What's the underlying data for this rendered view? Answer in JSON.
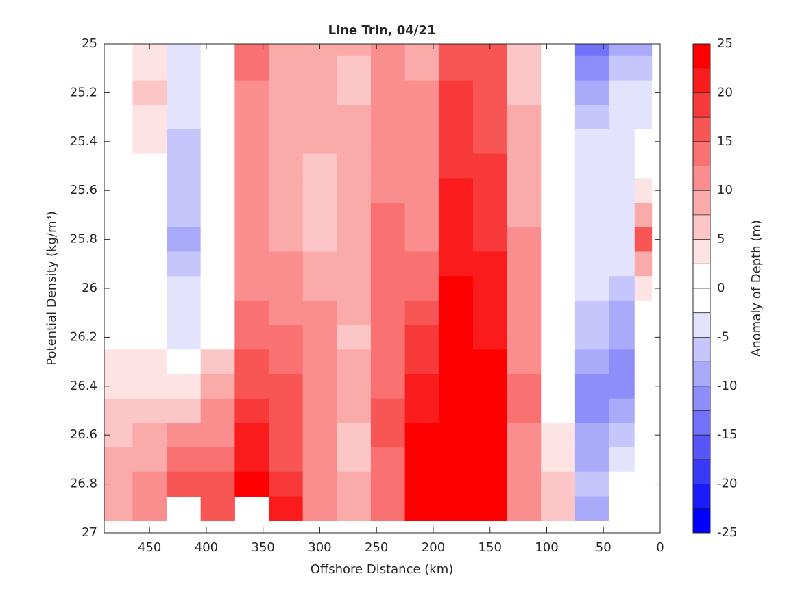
{
  "chart_data": {
    "type": "contourf",
    "title": "Line Trin, 04/21",
    "xlabel": "Offshore Distance (km)",
    "ylabel": "Potential Density (kg/m³)",
    "x": [
      480,
      450,
      420,
      390,
      360,
      330,
      300,
      270,
      240,
      210,
      180,
      150,
      120,
      90,
      60,
      30,
      15
    ],
    "y": [
      25.0,
      25.1,
      25.2,
      25.3,
      25.4,
      25.5,
      25.6,
      25.7,
      25.8,
      25.9,
      26.0,
      26.1,
      26.2,
      26.3,
      26.4,
      26.5,
      26.6,
      26.7,
      26.8,
      26.9
    ],
    "z": [
      [
        1,
        3,
        -4,
        1,
        14,
        9,
        8,
        8,
        11,
        9,
        16,
        15,
        7,
        1,
        -14,
        -8,
        -9
      ],
      [
        2,
        4,
        -4,
        1,
        14,
        9,
        8,
        7,
        11,
        9,
        17,
        15,
        7,
        1,
        -12,
        -7,
        -7
      ],
      [
        2,
        6,
        -5,
        1,
        12,
        9,
        8,
        7,
        12,
        10,
        18,
        16,
        7,
        1,
        -9,
        -4,
        -5
      ],
      [
        2,
        4,
        -5,
        1,
        11,
        9,
        8,
        8,
        12,
        10,
        18,
        17,
        8,
        1,
        -7,
        -4,
        -3
      ],
      [
        1,
        3,
        -6,
        1,
        11,
        9,
        8,
        8,
        12,
        10,
        19,
        17,
        8,
        1,
        -5,
        -3,
        -1
      ],
      [
        1,
        2,
        -6,
        1,
        11,
        9,
        7,
        8,
        12,
        11,
        19,
        18,
        9,
        1,
        -4,
        -3,
        2
      ],
      [
        1,
        1,
        -6,
        1,
        10,
        9,
        7,
        8,
        12,
        11,
        20,
        18,
        9,
        1,
        -4,
        -3,
        4
      ],
      [
        1,
        1,
        -7,
        1,
        10,
        9,
        7,
        8,
        13,
        12,
        20,
        19,
        9,
        1,
        -4,
        -3,
        8
      ],
      [
        1,
        1,
        -8,
        1,
        10,
        9,
        7,
        8,
        13,
        12,
        21,
        19,
        10,
        1,
        -4,
        -4,
        15
      ],
      [
        1,
        1,
        -6,
        1,
        11,
        10,
        8,
        8,
        13,
        13,
        22,
        20,
        10,
        1,
        -5,
        -5,
        9
      ],
      [
        1,
        1,
        -5,
        1,
        12,
        11,
        9,
        9,
        13,
        14,
        24,
        21,
        11,
        1,
        -5,
        -6,
        3
      ],
      [
        0,
        1,
        -4,
        1,
        13,
        12,
        10,
        8,
        13,
        16,
        25,
        22,
        11,
        1,
        -6,
        -8,
        1
      ],
      [
        0,
        0,
        -3,
        1,
        14,
        13,
        10,
        7,
        14,
        18,
        26,
        22,
        12,
        1,
        -7,
        -9,
        0
      ],
      [
        3,
        3,
        2,
        5,
        15,
        14,
        11,
        8,
        14,
        19,
        26,
        23,
        12,
        1,
        -9,
        -11,
        0
      ],
      [
        4,
        4,
        4,
        8,
        17,
        15,
        11,
        9,
        14,
        21,
        26,
        23,
        13,
        1,
        -11,
        -12,
        0
      ],
      [
        6,
        6,
        6,
        10,
        19,
        15,
        12,
        8,
        15,
        22,
        26,
        24,
        13,
        2,
        -12,
        -9,
        0
      ],
      [
        7,
        9,
        10,
        12,
        20,
        16,
        12,
        6,
        15,
        23,
        26,
        24,
        12,
        3,
        -9,
        -6,
        0
      ],
      [
        8,
        9,
        13,
        14,
        21,
        17,
        12,
        7,
        14,
        24,
        26,
        24,
        11,
        4,
        -8,
        -4,
        0
      ],
      [
        8,
        10,
        16,
        15,
        23,
        19,
        11,
        8,
        14,
        24,
        26,
        24,
        10,
        5,
        -7,
        -2,
        0
      ],
      [
        8,
        10,
        null,
        16,
        null,
        22,
        11,
        9,
        13,
        24,
        26,
        23,
        10,
        5,
        -9,
        1,
        0
      ]
    ],
    "xlim": [
      490,
      0
    ],
    "xticks": [
      450,
      400,
      350,
      300,
      250,
      200,
      150,
      100,
      50,
      0
    ],
    "ylim": [
      27,
      25
    ],
    "yticks": [
      25,
      25.2,
      25.4,
      25.6,
      25.8,
      26,
      26.2,
      26.4,
      26.6,
      26.8,
      27
    ],
    "colorbar": {
      "label": "Anomaly of Depth (m)",
      "levels": [
        -25,
        -22.5,
        -20,
        -17.5,
        -15,
        -12.5,
        -10,
        -7.5,
        -5,
        -2.5,
        0,
        2.5,
        5,
        7.5,
        10,
        12.5,
        15,
        17.5,
        20,
        22.5,
        25
      ],
      "colors": [
        "#0000ff",
        "#1c1cfa",
        "#3939f8",
        "#5555f8",
        "#7171f9",
        "#8e8efa",
        "#aaaafb",
        "#c6c6fc",
        "#e3e3fd",
        "#ffffff",
        "#ffffff",
        "#fde3e3",
        "#fcc6c6",
        "#fbaaaa",
        "#fa8e8e",
        "#f97171",
        "#f85555",
        "#f83939",
        "#fa1c1c",
        "#ff0000"
      ],
      "ticks": [
        -25,
        -20,
        -15,
        -10,
        -5,
        0,
        5,
        10,
        15,
        20,
        25
      ]
    }
  }
}
